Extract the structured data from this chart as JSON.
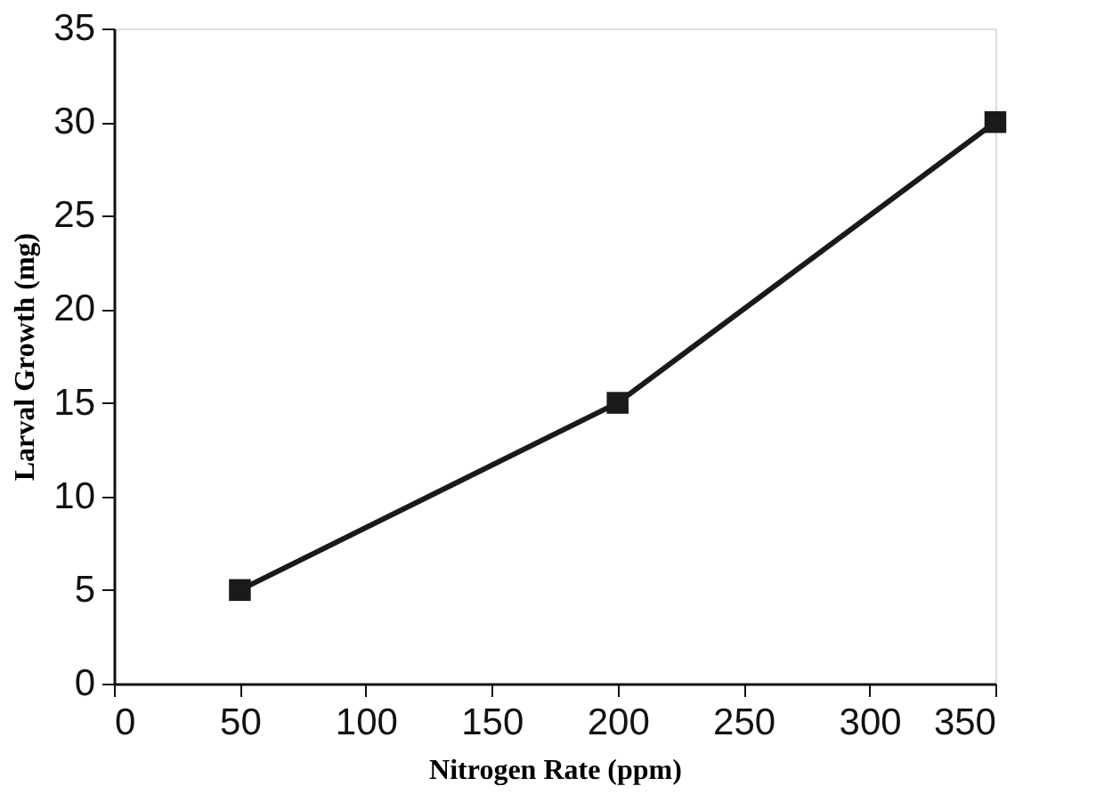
{
  "chart_data": {
    "type": "line",
    "xlabel": "Nitrogen Rate (ppm)",
    "ylabel": "Larval Growth (mg)",
    "x": [
      50,
      200,
      350
    ],
    "series": [
      {
        "color": "#1a1a1a",
        "values": [
          5,
          15,
          30
        ]
      }
    ],
    "xlim": [
      0,
      350
    ],
    "xticks": [
      0,
      50,
      100,
      150,
      200,
      250,
      300,
      350
    ],
    "ylim": [
      0,
      35
    ],
    "yticks": [
      0,
      5,
      10,
      15,
      20,
      25,
      30,
      35
    ],
    "grid": false,
    "marker": "square",
    "line_style": "solid"
  }
}
